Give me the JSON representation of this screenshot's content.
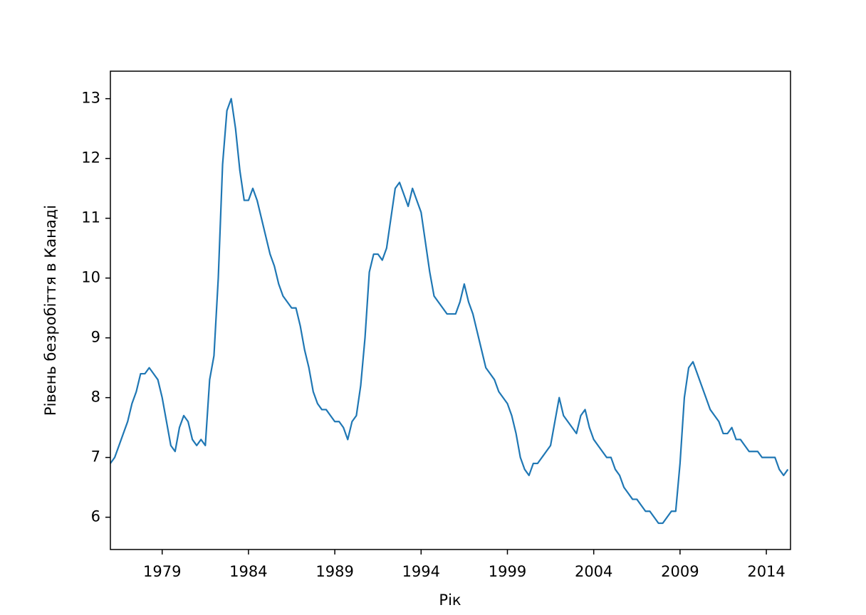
{
  "chart_data": {
    "type": "line",
    "x_label": "Рік",
    "y_label": "Рівень безробіття в Канаді",
    "x": [
      1976,
      1976.25,
      1976.5,
      1976.75,
      1977,
      1977.25,
      1977.5,
      1977.75,
      1978,
      1978.25,
      1978.5,
      1978.75,
      1979,
      1979.25,
      1979.5,
      1979.75,
      1980,
      1980.25,
      1980.5,
      1980.75,
      1981,
      1981.25,
      1981.5,
      1981.75,
      1982,
      1982.25,
      1982.5,
      1982.75,
      1983,
      1983.25,
      1983.5,
      1983.75,
      1984,
      1984.25,
      1984.5,
      1984.75,
      1985,
      1985.25,
      1985.5,
      1985.75,
      1986,
      1986.25,
      1986.5,
      1986.75,
      1987,
      1987.25,
      1987.5,
      1987.75,
      1988,
      1988.25,
      1988.5,
      1988.75,
      1989,
      1989.25,
      1989.5,
      1989.75,
      1990,
      1990.25,
      1990.5,
      1990.75,
      1991,
      1991.25,
      1991.5,
      1991.75,
      1992,
      1992.25,
      1992.5,
      1992.75,
      1993,
      1993.25,
      1993.5,
      1993.75,
      1994,
      1994.25,
      1994.5,
      1994.75,
      1995,
      1995.25,
      1995.5,
      1995.75,
      1996,
      1996.25,
      1996.5,
      1996.75,
      1997,
      1997.25,
      1997.5,
      1997.75,
      1998,
      1998.25,
      1998.5,
      1998.75,
      1999,
      1999.25,
      1999.5,
      1999.75,
      2000,
      2000.25,
      2000.5,
      2000.75,
      2001,
      2001.25,
      2001.5,
      2001.75,
      2002,
      2002.25,
      2002.5,
      2002.75,
      2003,
      2003.25,
      2003.5,
      2003.75,
      2004,
      2004.25,
      2004.5,
      2004.75,
      2005,
      2005.25,
      2005.5,
      2005.75,
      2006,
      2006.25,
      2006.5,
      2006.75,
      2007,
      2007.25,
      2007.5,
      2007.75,
      2008,
      2008.25,
      2008.5,
      2008.75,
      2009,
      2009.25,
      2009.5,
      2009.75,
      2010,
      2010.25,
      2010.5,
      2010.75,
      2011,
      2011.25,
      2011.5,
      2011.75,
      2012,
      2012.25,
      2012.5,
      2012.75,
      2013,
      2013.25,
      2013.5,
      2013.75,
      2014,
      2014.25,
      2014.5,
      2014.75,
      2015,
      2015.25
    ],
    "series": [
      {
        "color": "#1f77b4",
        "values": [
          6.9,
          7.0,
          7.2,
          7.4,
          7.6,
          7.9,
          8.1,
          8.4,
          8.4,
          8.5,
          8.4,
          8.3,
          8.0,
          7.6,
          7.2,
          7.1,
          7.5,
          7.7,
          7.6,
          7.3,
          7.2,
          7.3,
          7.2,
          8.3,
          8.7,
          10.0,
          11.9,
          12.8,
          13.0,
          12.5,
          11.8,
          11.3,
          11.3,
          11.5,
          11.3,
          11.0,
          10.7,
          10.4,
          10.2,
          9.9,
          9.7,
          9.6,
          9.5,
          9.5,
          9.2,
          8.8,
          8.5,
          8.1,
          7.9,
          7.8,
          7.8,
          7.7,
          7.6,
          7.6,
          7.5,
          7.3,
          7.6,
          7.7,
          8.2,
          9.0,
          10.1,
          10.4,
          10.4,
          10.3,
          10.5,
          11.0,
          11.5,
          11.6,
          11.4,
          11.2,
          11.5,
          11.3,
          11.1,
          10.6,
          10.1,
          9.7,
          9.6,
          9.5,
          9.4,
          9.4,
          9.4,
          9.6,
          9.9,
          9.6,
          9.4,
          9.1,
          8.8,
          8.5,
          8.4,
          8.3,
          8.1,
          8.0,
          7.9,
          7.7,
          7.4,
          7.0,
          6.8,
          6.7,
          6.9,
          6.9,
          7.0,
          7.1,
          7.2,
          7.6,
          8.0,
          7.7,
          7.6,
          7.5,
          7.4,
          7.7,
          7.8,
          7.5,
          7.3,
          7.2,
          7.1,
          7.0,
          7.0,
          6.8,
          6.7,
          6.5,
          6.4,
          6.3,
          6.3,
          6.2,
          6.1,
          6.1,
          6.0,
          5.9,
          5.9,
          6.0,
          6.1,
          6.1,
          6.9,
          8.0,
          8.5,
          8.6,
          8.4,
          8.2,
          8.0,
          7.8,
          7.7,
          7.6,
          7.4,
          7.4,
          7.5,
          7.3,
          7.3,
          7.2,
          7.1,
          7.1,
          7.1,
          7.0,
          7.0,
          7.0,
          7.0,
          6.8,
          6.7,
          6.8
        ]
      }
    ],
    "xlim": [
      1976,
      2015.4
    ],
    "xticks": [
      1979,
      1984,
      1989,
      1994,
      1999,
      2004,
      2009,
      2014
    ],
    "ylim": [
      5.46,
      13.46
    ],
    "yticks": [
      6,
      7,
      8,
      9,
      10,
      11,
      12,
      13
    ]
  }
}
